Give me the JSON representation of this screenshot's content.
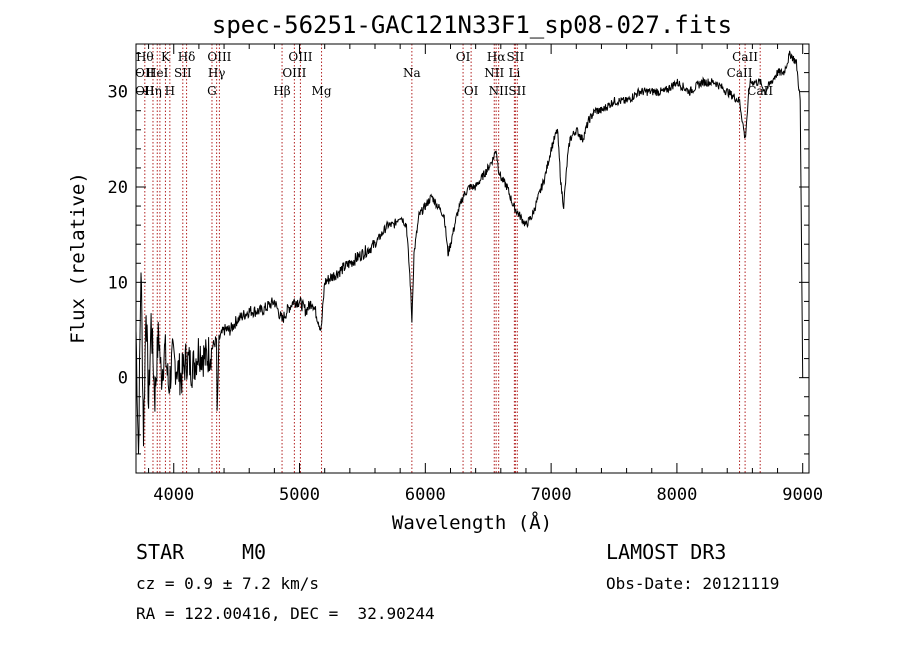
{
  "chart_data": {
    "type": "line",
    "title": "spec-56251-GAC121N33F1_sp08-027.fits",
    "xlabel": "Wavelength (Å)",
    "ylabel": "Flux (relative)",
    "xlim": [
      3700,
      9050
    ],
    "ylim": [
      -10,
      35
    ],
    "xticks": [
      4000,
      5000,
      6000,
      7000,
      8000,
      9000
    ],
    "yticks": [
      0,
      10,
      20,
      30
    ],
    "x_minor_step": 200,
    "y_minor_step": 2,
    "grid": false,
    "series": [
      {
        "name": "spectrum",
        "x": [
          3700,
          3720,
          3740,
          3760,
          3780,
          3800,
          3820,
          3850,
          3880,
          3900,
          3930,
          3960,
          3990,
          4030,
          4060,
          4100,
          4150,
          4200,
          4250,
          4300,
          4340,
          4345,
          4360,
          4400,
          4450,
          4500,
          4600,
          4700,
          4800,
          4861,
          4900,
          4950,
          5000,
          5050,
          5100,
          5150,
          5172,
          5200,
          5300,
          5400,
          5500,
          5600,
          5650,
          5700,
          5750,
          5800,
          5850,
          5880,
          5893,
          5910,
          5950,
          6000,
          6050,
          6100,
          6150,
          6180,
          6200,
          6250,
          6300,
          6350,
          6400,
          6450,
          6500,
          6540,
          6563,
          6580,
          6600,
          6650,
          6700,
          6750,
          6800,
          6850,
          6900,
          6950,
          7000,
          7050,
          7080,
          7100,
          7130,
          7150,
          7200,
          7250,
          7300,
          7350,
          7400,
          7500,
          7600,
          7700,
          7800,
          7900,
          8000,
          8100,
          8200,
          8300,
          8400,
          8498,
          8542,
          8580,
          8662,
          8700,
          8800,
          8850,
          8900,
          8950,
          8980,
          9000
        ],
        "y": [
          5,
          -8,
          12,
          -6,
          8,
          -3,
          6,
          -2,
          5,
          0,
          3,
          -1,
          2,
          1,
          0,
          2,
          1,
          3,
          2,
          3,
          4,
          -4,
          4,
          5,
          5,
          6,
          7,
          7,
          8,
          6,
          7,
          8,
          8,
          7,
          8,
          6,
          5,
          10,
          11,
          12,
          13,
          14,
          15,
          16,
          16,
          17,
          16,
          10,
          6,
          13,
          17,
          18,
          19,
          18,
          17,
          13,
          14,
          17,
          19,
          20,
          20,
          21,
          22,
          23,
          24,
          22,
          21,
          20,
          18,
          17,
          16,
          17,
          19,
          21,
          24,
          26,
          20,
          18,
          23,
          25,
          26,
          25,
          27,
          28,
          28,
          29,
          29,
          30,
          30,
          30,
          31,
          30,
          31,
          31,
          30,
          29,
          25,
          31,
          31,
          30,
          32,
          32,
          34,
          33,
          29,
          0
        ]
      }
    ],
    "spectral_lines": [
      {
        "wl": 3770,
        "top": "Hθ",
        "mid": "OII",
        "low": "OII"
      },
      {
        "wl": 3835,
        "top": "",
        "mid": "",
        "low": "Hη"
      },
      {
        "wl": 3869,
        "top": "",
        "mid": "HeI",
        "low": ""
      },
      {
        "wl": 3890,
        "top": "",
        "mid": "",
        "low": ""
      },
      {
        "wl": 3934,
        "top": "K",
        "mid": "",
        "low": ""
      },
      {
        "wl": 3969,
        "top": "",
        "mid": "",
        "low": "H"
      },
      {
        "wl": 4072,
        "top": "",
        "mid": "SII",
        "low": ""
      },
      {
        "wl": 4102,
        "top": "Hδ",
        "mid": "",
        "low": ""
      },
      {
        "wl": 4304,
        "top": "",
        "mid": "",
        "low": "G"
      },
      {
        "wl": 4341,
        "top": "",
        "mid": "Hγ",
        "low": ""
      },
      {
        "wl": 4363,
        "top": "OIII",
        "mid": "",
        "low": ""
      },
      {
        "wl": 4861,
        "top": "",
        "mid": "",
        "low": "Hβ"
      },
      {
        "wl": 4959,
        "top": "",
        "mid": "OIII",
        "low": ""
      },
      {
        "wl": 5007,
        "top": "OIII",
        "mid": "",
        "low": ""
      },
      {
        "wl": 5175,
        "top": "",
        "mid": "",
        "low": "Mg"
      },
      {
        "wl": 5893,
        "top": "",
        "mid": "Na",
        "low": ""
      },
      {
        "wl": 6300,
        "top": "OI",
        "mid": "",
        "low": ""
      },
      {
        "wl": 6364,
        "top": "",
        "mid": "",
        "low": "OI"
      },
      {
        "wl": 6548,
        "top": "",
        "mid": "NII",
        "low": ""
      },
      {
        "wl": 6563,
        "top": "Hα",
        "mid": "",
        "low": ""
      },
      {
        "wl": 6583,
        "top": "",
        "mid": "",
        "low": "NII"
      },
      {
        "wl": 6708,
        "top": "",
        "mid": "Li",
        "low": ""
      },
      {
        "wl": 6716,
        "top": "SII",
        "mid": "",
        "low": ""
      },
      {
        "wl": 6731,
        "top": "",
        "mid": "",
        "low": "SII"
      },
      {
        "wl": 8498,
        "top": "",
        "mid": "CaII",
        "low": ""
      },
      {
        "wl": 8542,
        "top": "CaII",
        "mid": "",
        "low": ""
      },
      {
        "wl": 8662,
        "top": "",
        "mid": "",
        "low": "CaII"
      }
    ]
  },
  "info": {
    "class": "STAR",
    "subclass": "M0",
    "survey": "LAMOST DR3",
    "cz": "cz = 0.9 ± 7.2 km/s",
    "obs_date": "Obs-Date: 20121119",
    "coords": "RA = 122.00416, DEC =  32.90244"
  }
}
